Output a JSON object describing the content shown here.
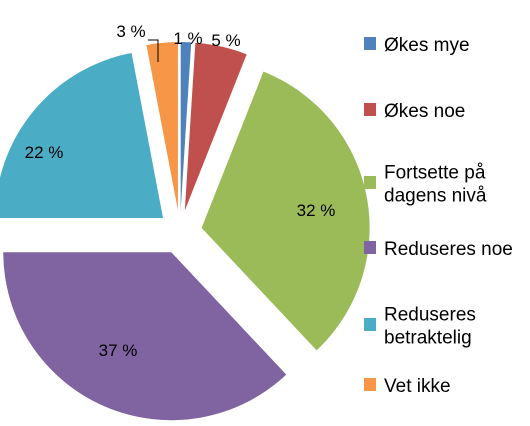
{
  "chart_data": {
    "type": "pie",
    "legend_position": "right",
    "start_angle_deg": 90,
    "direction": "clockwise",
    "exploded": true,
    "slices": [
      {
        "label": "Økes mye",
        "value": 1,
        "data_label": "1 %",
        "color": "#4F81BD"
      },
      {
        "label": "Økes noe",
        "value": 5,
        "data_label": "5 %",
        "color": "#C0504D"
      },
      {
        "label": "Fortsette på dagens nivå",
        "value": 32,
        "data_label": "32 %",
        "color": "#9BBB59"
      },
      {
        "label": "Reduseres noe",
        "value": 37,
        "data_label": "37 %",
        "color": "#8064A2"
      },
      {
        "label": "Reduseres betraktelig",
        "value": 22,
        "data_label": "22 %",
        "color": "#4BACC6"
      },
      {
        "label": "Vet ikke",
        "value": 3,
        "data_label": "3 %",
        "color": "#F79646"
      }
    ]
  }
}
